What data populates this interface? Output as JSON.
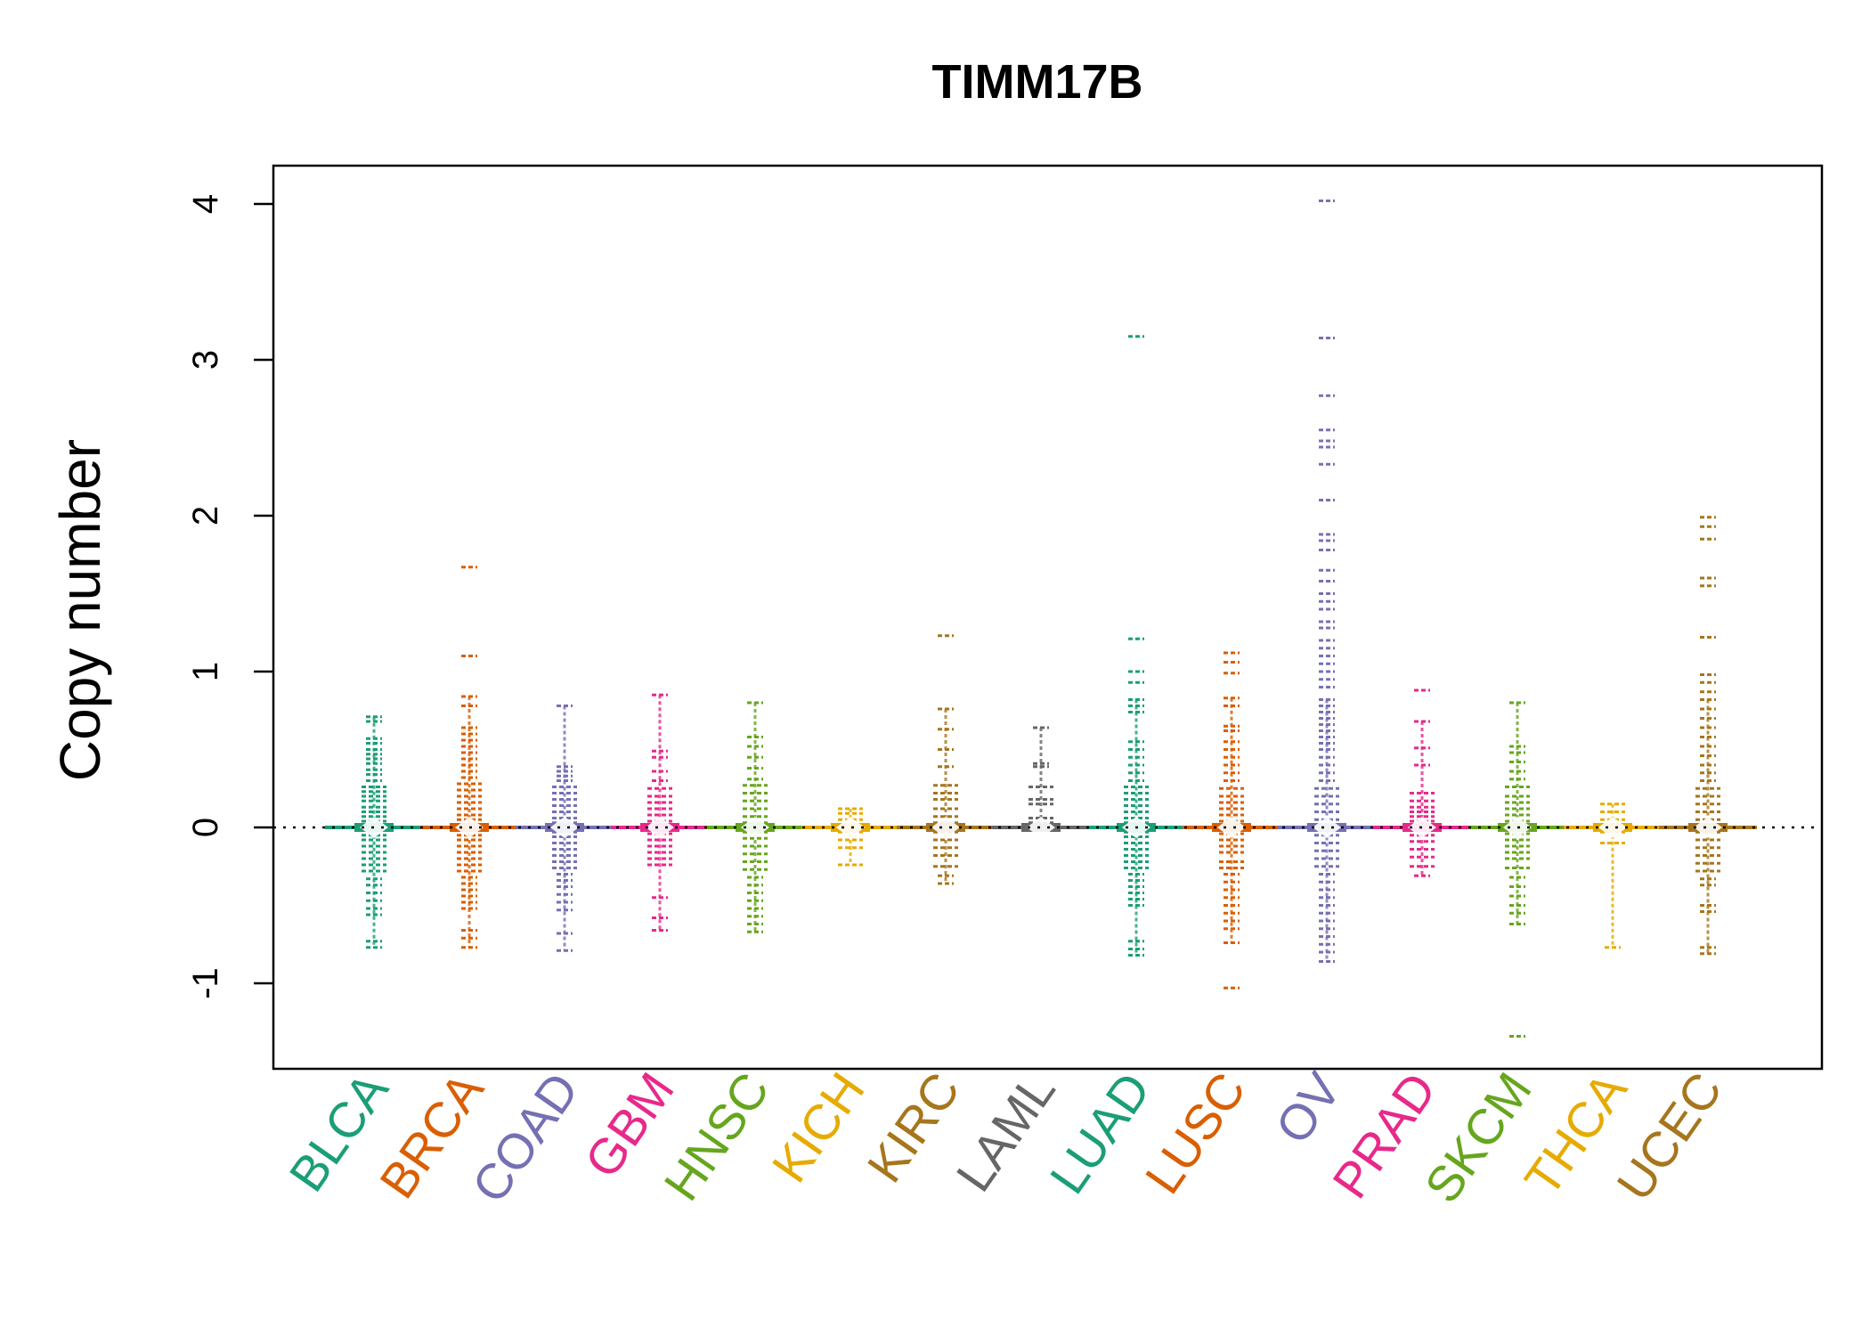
{
  "chart_data": {
    "type": "scatter",
    "title": "TIMM17B",
    "xlabel": "",
    "ylabel": "Copy number",
    "ylim": [
      -1.55,
      4.25
    ],
    "yticks": [
      -1,
      0,
      1,
      2,
      3,
      4
    ],
    "ytick_labels": [
      "-1",
      "0",
      "1",
      "2",
      "3",
      "4"
    ],
    "reference_line": 0,
    "grid": false,
    "legend": "none",
    "series": [
      {
        "name": "BLCA",
        "color": "#1B9E77",
        "values": [
          0.71,
          0.68,
          0.57,
          0.54,
          0.5,
          0.47,
          0.44,
          0.41,
          0.37,
          0.34,
          0.3,
          0.26,
          0.23,
          0.2,
          0.17,
          0.13,
          0.1,
          0.07,
          0.04,
          0.02,
          0.0,
          -0.02,
          -0.05,
          -0.08,
          -0.12,
          -0.16,
          -0.2,
          -0.24,
          -0.28,
          -0.33,
          -0.37,
          -0.42,
          -0.47,
          -0.52,
          -0.56,
          -0.73,
          -0.77
        ]
      },
      {
        "name": "BRCA",
        "color": "#D95F02",
        "values": [
          1.67,
          1.1,
          0.84,
          0.78,
          0.64,
          0.6,
          0.56,
          0.52,
          0.48,
          0.44,
          0.4,
          0.36,
          0.32,
          0.28,
          0.24,
          0.2,
          0.16,
          0.12,
          0.08,
          0.05,
          0.02,
          0.0,
          -0.02,
          -0.05,
          -0.08,
          -0.12,
          -0.16,
          -0.2,
          -0.24,
          -0.28,
          -0.32,
          -0.36,
          -0.4,
          -0.44,
          -0.48,
          -0.52,
          -0.66,
          -0.71,
          -0.77
        ]
      },
      {
        "name": "COAD",
        "color": "#7570B3",
        "values": [
          0.78,
          0.39,
          0.36,
          0.33,
          0.3,
          0.26,
          0.22,
          0.18,
          0.14,
          0.1,
          0.06,
          0.03,
          0.0,
          -0.03,
          -0.06,
          -0.1,
          -0.14,
          -0.18,
          -0.22,
          -0.26,
          -0.3,
          -0.34,
          -0.38,
          -0.43,
          -0.48,
          -0.53,
          -0.68,
          -0.79
        ]
      },
      {
        "name": "GBM",
        "color": "#E7298A",
        "values": [
          0.85,
          0.49,
          0.45,
          0.36,
          0.3,
          0.25,
          0.2,
          0.16,
          0.12,
          0.08,
          0.04,
          0.0,
          -0.04,
          -0.08,
          -0.12,
          -0.16,
          -0.2,
          -0.24,
          -0.45,
          -0.58,
          -0.66
        ]
      },
      {
        "name": "HNSC",
        "color": "#66A61E",
        "values": [
          0.8,
          0.58,
          0.52,
          0.45,
          0.38,
          0.31,
          0.27,
          0.22,
          0.17,
          0.12,
          0.07,
          0.03,
          0.0,
          -0.03,
          -0.07,
          -0.12,
          -0.17,
          -0.22,
          -0.27,
          -0.32,
          -0.37,
          -0.42,
          -0.47,
          -0.52,
          -0.57,
          -0.62,
          -0.67
        ]
      },
      {
        "name": "KICH",
        "color": "#E6AB02",
        "values": [
          0.12,
          0.09,
          0.05,
          0.02,
          0.0,
          -0.03,
          -0.08,
          -0.13,
          -0.24
        ]
      },
      {
        "name": "KIRC",
        "color": "#A6761D",
        "values": [
          1.23,
          0.76,
          0.63,
          0.5,
          0.39,
          0.27,
          0.22,
          0.18,
          0.12,
          0.07,
          0.03,
          0.0,
          -0.03,
          -0.08,
          -0.13,
          -0.18,
          -0.25,
          -0.31,
          -0.36
        ]
      },
      {
        "name": "LAML",
        "color": "#666666",
        "values": [
          0.64,
          0.41,
          0.39,
          0.26,
          0.18,
          0.15,
          0.06,
          0.03,
          0.0
        ]
      },
      {
        "name": "LUAD",
        "color": "#1B9E77",
        "values": [
          3.15,
          1.21,
          1.0,
          0.93,
          0.82,
          0.78,
          0.74,
          0.55,
          0.5,
          0.45,
          0.4,
          0.35,
          0.3,
          0.26,
          0.22,
          0.18,
          0.14,
          0.1,
          0.06,
          0.03,
          0.0,
          -0.03,
          -0.06,
          -0.1,
          -0.14,
          -0.18,
          -0.22,
          -0.26,
          -0.3,
          -0.34,
          -0.38,
          -0.42,
          -0.46,
          -0.5,
          -0.73,
          -0.78,
          -0.82
        ]
      },
      {
        "name": "LUSC",
        "color": "#D95F02",
        "values": [
          1.12,
          1.06,
          0.99,
          0.83,
          0.78,
          0.65,
          0.62,
          0.55,
          0.5,
          0.45,
          0.4,
          0.35,
          0.3,
          0.25,
          0.2,
          0.16,
          0.12,
          0.08,
          0.04,
          0.0,
          -0.04,
          -0.08,
          -0.12,
          -0.16,
          -0.22,
          -0.26,
          -0.3,
          -0.35,
          -0.4,
          -0.45,
          -0.5,
          -0.55,
          -0.6,
          -0.65,
          -0.74,
          -1.03
        ]
      },
      {
        "name": "OV",
        "color": "#7570B3",
        "values": [
          4.02,
          3.14,
          2.77,
          2.55,
          2.48,
          2.44,
          2.33,
          2.1,
          1.88,
          1.84,
          1.78,
          1.65,
          1.58,
          1.5,
          1.45,
          1.4,
          1.32,
          1.28,
          1.2,
          1.15,
          1.1,
          1.05,
          1.0,
          0.95,
          0.9,
          0.82,
          0.78,
          0.74,
          0.7,
          0.66,
          0.62,
          0.58,
          0.54,
          0.5,
          0.45,
          0.4,
          0.35,
          0.3,
          0.25,
          0.2,
          0.15,
          0.1,
          0.05,
          0.02,
          0.0,
          -0.05,
          -0.1,
          -0.15,
          -0.2,
          -0.25,
          -0.3,
          -0.35,
          -0.4,
          -0.45,
          -0.5,
          -0.55,
          -0.6,
          -0.65,
          -0.7,
          -0.75,
          -0.8,
          -0.86
        ]
      },
      {
        "name": "PRAD",
        "color": "#E7298A",
        "values": [
          0.88,
          0.68,
          0.51,
          0.4,
          0.22,
          0.17,
          0.13,
          0.1,
          0.07,
          0.04,
          0.02,
          0.0,
          -0.02,
          -0.05,
          -0.09,
          -0.14,
          -0.19,
          -0.25,
          -0.31
        ]
      },
      {
        "name": "SKCM",
        "color": "#66A61E",
        "values": [
          0.8,
          0.52,
          0.48,
          0.42,
          0.36,
          0.31,
          0.26,
          0.2,
          0.16,
          0.12,
          0.08,
          0.04,
          0.0,
          -0.04,
          -0.08,
          -0.12,
          -0.16,
          -0.2,
          -0.26,
          -0.32,
          -0.38,
          -0.44,
          -0.5,
          -0.55,
          -0.62,
          -1.34
        ]
      },
      {
        "name": "THCA",
        "color": "#E6AB02",
        "values": [
          0.15,
          0.1,
          0.05,
          0.02,
          0.0,
          -0.03,
          -0.1,
          -0.77
        ]
      },
      {
        "name": "UCEC",
        "color": "#A6761D",
        "values": [
          1.99,
          1.93,
          1.85,
          1.6,
          1.55,
          1.22,
          0.98,
          0.93,
          0.87,
          0.82,
          0.76,
          0.7,
          0.64,
          0.58,
          0.52,
          0.46,
          0.4,
          0.35,
          0.3,
          0.25,
          0.2,
          0.15,
          0.1,
          0.05,
          0.02,
          0.0,
          -0.03,
          -0.08,
          -0.13,
          -0.18,
          -0.23,
          -0.28,
          -0.33,
          -0.37,
          -0.5,
          -0.54,
          -0.77,
          -0.81
        ]
      }
    ]
  }
}
